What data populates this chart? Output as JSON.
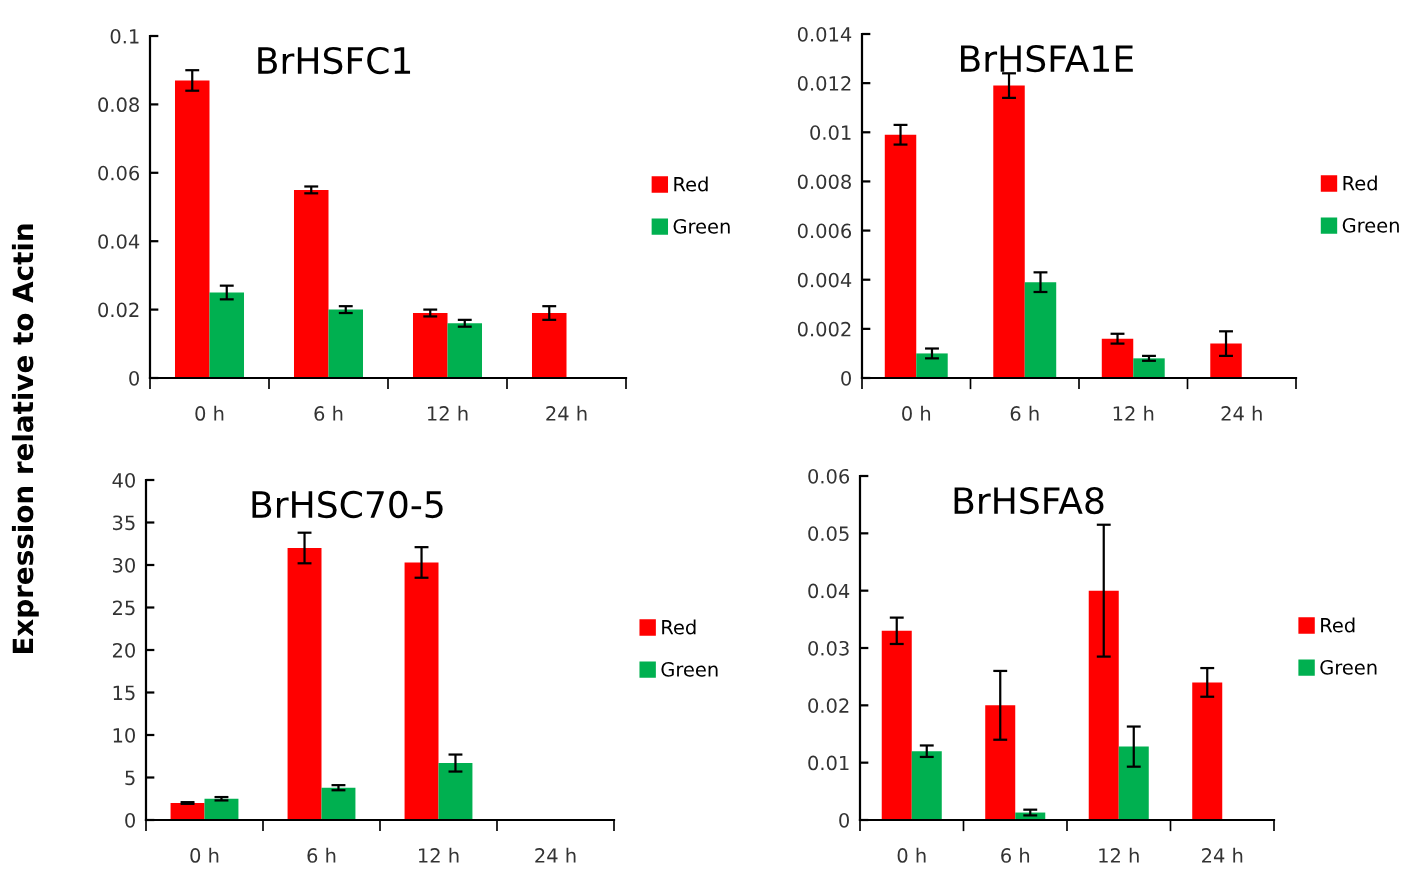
{
  "chart_data": [
    {
      "type": "bar",
      "title": "BrHSFC1",
      "ylabel": "Expression relative to Actin",
      "categories": [
        "0 h",
        "6 h",
        "12 h",
        "24 h"
      ],
      "ylim": [
        0,
        0.1
      ],
      "yticks": [
        0,
        0.02,
        0.04,
        0.06,
        0.08,
        0.1
      ],
      "legend": "right",
      "series": [
        {
          "name": "Red",
          "color": "#ff0000",
          "values": [
            0.087,
            0.055,
            0.019,
            0.019
          ],
          "errors": [
            0.003,
            0.001,
            0.001,
            0.002
          ]
        },
        {
          "name": "Green",
          "color": "#00b050",
          "values": [
            0.025,
            0.02,
            0.016,
            null
          ],
          "errors": [
            0.002,
            0.001,
            0.001,
            null
          ]
        }
      ]
    },
    {
      "type": "bar",
      "title": "BrHSFA1E",
      "categories": [
        "0 h",
        "6 h",
        "12 h",
        "24 h"
      ],
      "ylim": [
        0,
        0.014
      ],
      "yticks": [
        0,
        0.002,
        0.004,
        0.006,
        0.008,
        0.01,
        0.012,
        0.014
      ],
      "legend": "right",
      "series": [
        {
          "name": "Red",
          "color": "#ff0000",
          "values": [
            0.0099,
            0.0119,
            0.0016,
            0.0014
          ],
          "errors": [
            0.0004,
            0.0005,
            0.0002,
            0.0005
          ]
        },
        {
          "name": "Green",
          "color": "#00b050",
          "values": [
            0.001,
            0.0039,
            0.0008,
            null
          ],
          "errors": [
            0.0002,
            0.0004,
            0.0001,
            null
          ]
        }
      ]
    },
    {
      "type": "bar",
      "title": "BrHSC70-5",
      "categories": [
        "0 h",
        "6 h",
        "12 h",
        "24 h"
      ],
      "ylim": [
        0,
        40
      ],
      "yticks": [
        0,
        5,
        10,
        15,
        20,
        25,
        30,
        35,
        40
      ],
      "legend": "right",
      "series": [
        {
          "name": "Red",
          "color": "#ff0000",
          "values": [
            2,
            32,
            30.3,
            null
          ],
          "errors": [
            0.1,
            1.8,
            1.8,
            null
          ]
        },
        {
          "name": "Green",
          "color": "#00b050",
          "values": [
            2.5,
            3.8,
            6.7,
            null
          ],
          "errors": [
            0.2,
            0.3,
            1.0,
            null
          ]
        }
      ]
    },
    {
      "type": "bar",
      "title": "BrHSFA8",
      "categories": [
        "0 h",
        "6 h",
        "12 h",
        "24 h"
      ],
      "ylim": [
        0,
        0.06
      ],
      "yticks": [
        0,
        0.01,
        0.02,
        0.03,
        0.04,
        0.05,
        0.06
      ],
      "legend": "right",
      "series": [
        {
          "name": "Red",
          "color": "#ff0000",
          "values": [
            0.033,
            0.02,
            0.04,
            0.024
          ],
          "errors": [
            0.0023,
            0.006,
            0.0115,
            0.0025
          ]
        },
        {
          "name": "Green",
          "color": "#00b050",
          "values": [
            0.012,
            0.0013,
            0.0128,
            null
          ],
          "errors": [
            0.001,
            0.0005,
            0.0035,
            null
          ]
        }
      ]
    }
  ]
}
